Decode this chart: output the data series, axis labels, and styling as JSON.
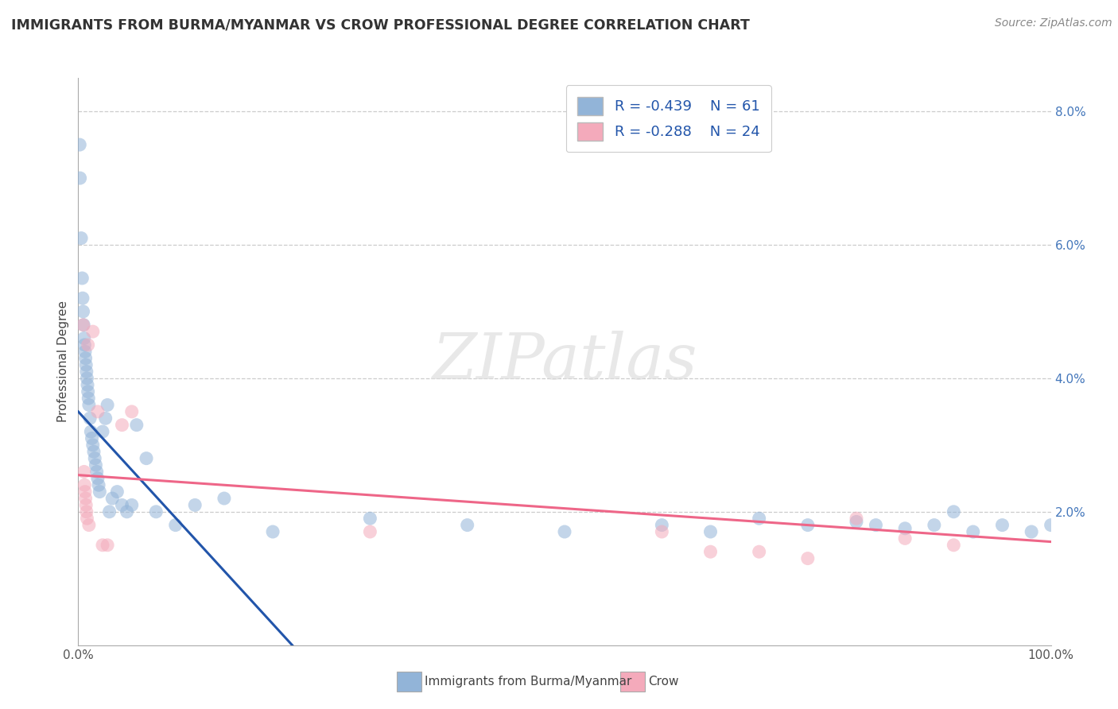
{
  "title": "IMMIGRANTS FROM BURMA/MYANMAR VS CROW PROFESSIONAL DEGREE CORRELATION CHART",
  "source": "Source: ZipAtlas.com",
  "ylabel": "Professional Degree",
  "watermark": "ZIPatlas",
  "legend": {
    "blue_r": -0.439,
    "blue_n": 61,
    "pink_r": -0.288,
    "pink_n": 24
  },
  "blue_color": "#92B4D8",
  "pink_color": "#F4AABB",
  "blue_line_color": "#2255AA",
  "pink_line_color": "#EE6688",
  "xlim": [
    0,
    100
  ],
  "ylim": [
    0,
    8.5
  ],
  "blue_points_x": [
    0.15,
    0.18,
    0.3,
    0.4,
    0.45,
    0.5,
    0.55,
    0.6,
    0.65,
    0.7,
    0.75,
    0.8,
    0.85,
    0.9,
    0.95,
    1.0,
    1.05,
    1.1,
    1.2,
    1.3,
    1.4,
    1.5,
    1.6,
    1.7,
    1.8,
    1.9,
    2.0,
    2.1,
    2.2,
    2.5,
    2.8,
    3.0,
    3.2,
    3.5,
    4.0,
    4.5,
    5.0,
    5.5,
    6.0,
    7.0,
    8.0,
    10.0,
    12.0,
    15.0,
    20.0,
    30.0,
    40.0,
    50.0,
    60.0,
    65.0,
    70.0,
    75.0,
    80.0,
    82.0,
    85.0,
    88.0,
    90.0,
    92.0,
    95.0,
    98.0,
    100.0
  ],
  "blue_points_y": [
    7.5,
    7.0,
    6.1,
    5.5,
    5.2,
    5.0,
    4.8,
    4.6,
    4.5,
    4.4,
    4.3,
    4.2,
    4.1,
    4.0,
    3.9,
    3.8,
    3.7,
    3.6,
    3.4,
    3.2,
    3.1,
    3.0,
    2.9,
    2.8,
    2.7,
    2.6,
    2.5,
    2.4,
    2.3,
    3.2,
    3.4,
    3.6,
    2.0,
    2.2,
    2.3,
    2.1,
    2.0,
    2.1,
    3.3,
    2.8,
    2.0,
    1.8,
    2.1,
    2.2,
    1.7,
    1.9,
    1.8,
    1.7,
    1.8,
    1.7,
    1.9,
    1.8,
    1.85,
    1.8,
    1.75,
    1.8,
    2.0,
    1.7,
    1.8,
    1.7,
    1.8
  ],
  "pink_points_x": [
    0.5,
    0.6,
    0.65,
    0.7,
    0.75,
    0.8,
    0.85,
    0.9,
    1.0,
    1.1,
    1.5,
    2.0,
    2.5,
    3.0,
    4.5,
    5.5,
    30.0,
    60.0,
    65.0,
    70.0,
    75.0,
    80.0,
    85.0,
    90.0
  ],
  "pink_points_y": [
    4.8,
    2.6,
    2.4,
    2.3,
    2.2,
    2.1,
    2.0,
    1.9,
    4.5,
    1.8,
    4.7,
    3.5,
    1.5,
    1.5,
    3.3,
    3.5,
    1.7,
    1.7,
    1.4,
    1.4,
    1.3,
    1.9,
    1.6,
    1.5
  ],
  "blue_line": {
    "x0": 0,
    "y0": 3.5,
    "x1": 22,
    "y1": 0
  },
  "pink_line": {
    "x0": 0,
    "y0": 2.55,
    "x1": 100,
    "y1": 1.55
  }
}
